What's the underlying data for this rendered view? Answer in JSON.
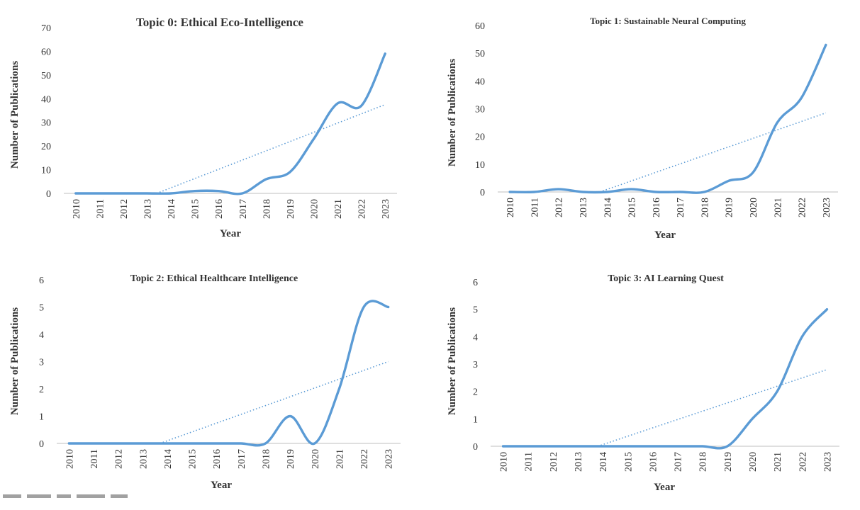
{
  "chart_data": [
    {
      "type": "line",
      "title": "Topic 0: Ethical Eco-Intelligence",
      "xlabel": "Year",
      "ylabel": "Number of Publications",
      "categories": [
        "2010",
        "2011",
        "2012",
        "2013",
        "2014",
        "2015",
        "2016",
        "2017",
        "2018",
        "2019",
        "2020",
        "2021",
        "2022",
        "2023"
      ],
      "series": [
        {
          "values": [
            0,
            0,
            0,
            0,
            0,
            1,
            1,
            0,
            6,
            9,
            23,
            38,
            37,
            59
          ]
        }
      ],
      "trendline": {
        "type": "linear",
        "style": "dotted",
        "start": [
          2013.4,
          0
        ],
        "end": [
          2023,
          37.5
        ]
      },
      "ylim": [
        0,
        70
      ],
      "yticks": [
        0,
        10,
        20,
        30,
        40,
        50,
        60,
        70
      ],
      "grid": false,
      "color": "#5b9bd5"
    },
    {
      "type": "line",
      "title": "Topic 1: Sustainable Neural Computing",
      "xlabel": "Year",
      "ylabel": "Number of Publications",
      "categories": [
        "2010",
        "2011",
        "2012",
        "2013",
        "2014",
        "2015",
        "2016",
        "2017",
        "2018",
        "2019",
        "2020",
        "2021",
        "2022",
        "2023"
      ],
      "series": [
        {
          "values": [
            0,
            0,
            1,
            0,
            0,
            1,
            0,
            0,
            0,
            4,
            7,
            25,
            34,
            53
          ]
        }
      ],
      "trendline": {
        "type": "linear",
        "style": "dotted",
        "start": [
          2013.7,
          0
        ],
        "end": [
          2023,
          28.5
        ]
      },
      "ylim": [
        0,
        60
      ],
      "yticks": [
        0,
        10,
        20,
        30,
        40,
        50,
        60
      ],
      "grid": false,
      "color": "#5b9bd5"
    },
    {
      "type": "line",
      "title": "Topic 2: Ethical Healthcare Intelligence",
      "xlabel": "Year",
      "ylabel": "Number of Publications",
      "categories": [
        "2010",
        "2011",
        "2012",
        "2013",
        "2014",
        "2015",
        "2016",
        "2017",
        "2018",
        "2019",
        "2020",
        "2021",
        "2022",
        "2023"
      ],
      "series": [
        {
          "values": [
            0,
            0,
            0,
            0,
            0,
            0,
            0,
            0,
            0,
            1,
            0,
            2,
            5,
            5
          ]
        }
      ],
      "trendline": {
        "type": "linear",
        "style": "dotted",
        "start": [
          2013.7,
          0
        ],
        "end": [
          2023,
          3
        ]
      },
      "ylim": [
        0,
        6
      ],
      "yticks": [
        0,
        1,
        2,
        3,
        4,
        5,
        6
      ],
      "grid": false,
      "color": "#5b9bd5"
    },
    {
      "type": "line",
      "title": "Topic 3: AI Learning Quest",
      "xlabel": "Year",
      "ylabel": "Number of Publications",
      "categories": [
        "2010",
        "2011",
        "2012",
        "2013",
        "2014",
        "2015",
        "2016",
        "2017",
        "2018",
        "2019",
        "2020",
        "2021",
        "2022",
        "2023"
      ],
      "series": [
        {
          "values": [
            0,
            0,
            0,
            0,
            0,
            0,
            0,
            0,
            0,
            0,
            1,
            2,
            4,
            5
          ]
        }
      ],
      "trendline": {
        "type": "linear",
        "style": "dotted",
        "start": [
          2013.8,
          0
        ],
        "end": [
          2023,
          2.8
        ]
      },
      "ylim": [
        0,
        6
      ],
      "yticks": [
        0,
        1,
        2,
        3,
        4,
        5,
        6
      ],
      "grid": false,
      "color": "#5b9bd5"
    }
  ]
}
